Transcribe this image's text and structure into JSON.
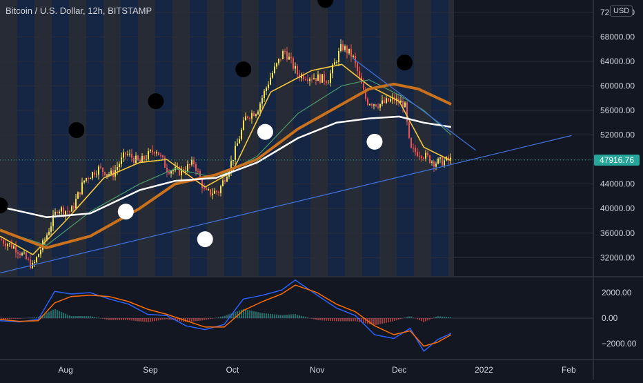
{
  "chart_title": "Bitcoin / U.S. Dollar, 12h, BITSTAMP",
  "currency_badge": "USD",
  "colors": {
    "background": "#131722",
    "band_dark": "#2a2e39",
    "band_blue": "#152847",
    "grid": "#2a2e39",
    "axis_text": "#d1d4dc",
    "candle_up": "#f5e14b",
    "candle_down": "#ef5350",
    "ema_fast": "#f7c93a",
    "ma_mid": "#4d9a6a",
    "ma_slow": "#c9711d",
    "ma_long": "#ffffff",
    "trendline": "#3f6fd6",
    "macd_line": "#2962ff",
    "signal_line": "#ff6d00",
    "last_price": "#26a69a"
  },
  "chart_data": [
    {
      "type": "line",
      "pane": "price",
      "title": "Bitcoin / U.S. Dollar, 12h, BITSTAMP",
      "x_ticks": [
        "Aug",
        "Sep",
        "Oct",
        "Nov",
        "Dec",
        "2022",
        "Feb"
      ],
      "y_ticks": [
        32000,
        36000,
        40000,
        44000,
        48000,
        52000,
        56000,
        60000,
        64000,
        68000,
        72000
      ],
      "y_tick_labels": [
        "32000.00",
        "36000.00",
        "40000.00",
        "44000.00",
        "48000.00",
        "52000.00",
        "56000.00",
        "60000.00",
        "64000.00",
        "68000.00",
        "72000.00"
      ],
      "ylim": [
        29000,
        74000
      ],
      "last_price": 47916.76,
      "last_price_label": "47916.76",
      "close_series": {
        "name": "",
        "dates": [
          "2021-07-08",
          "2021-07-14",
          "2021-07-20",
          "2021-07-24",
          "2021-07-29",
          "2021-08-03",
          "2021-08-08",
          "2021-08-13",
          "2021-08-18",
          "2021-08-23",
          "2021-08-28",
          "2021-09-03",
          "2021-09-07",
          "2021-09-12",
          "2021-09-17",
          "2021-09-21",
          "2021-09-26",
          "2021-10-01",
          "2021-10-06",
          "2021-10-10",
          "2021-10-15",
          "2021-10-20",
          "2021-10-25",
          "2021-10-30",
          "2021-11-05",
          "2021-11-10",
          "2021-11-14",
          "2021-11-19",
          "2021-11-24",
          "2021-11-29",
          "2021-12-03",
          "2021-12-05",
          "2021-12-09",
          "2021-12-14",
          "2021-12-20"
        ],
        "values": [
          35000,
          33500,
          30500,
          34500,
          40000,
          39500,
          44800,
          46500,
          45500,
          49000,
          47500,
          49800,
          46500,
          46000,
          47500,
          42500,
          42800,
          48000,
          55000,
          56000,
          61500,
          65800,
          61800,
          61500,
          61000,
          66500,
          64800,
          57500,
          57000,
          57800,
          57000,
          49500,
          49000,
          47500,
          47900
        ]
      },
      "moving_averages": [
        {
          "name": "",
          "dates": [
            "2021-07-08",
            "2021-07-20",
            "2021-08-01",
            "2021-08-15",
            "2021-08-28",
            "2021-09-07",
            "2021-09-21",
            "2021-10-01",
            "2021-10-15",
            "2021-10-30",
            "2021-11-10",
            "2021-11-20",
            "2021-12-01",
            "2021-12-10",
            "2021-12-20"
          ],
          "values": [
            35500,
            32500,
            38000,
            45000,
            47500,
            48000,
            43500,
            46000,
            59000,
            62500,
            63500,
            60000,
            57500,
            50000,
            47800
          ]
        },
        {
          "name": "",
          "dates": [
            "2021-07-08",
            "2021-07-25",
            "2021-08-10",
            "2021-08-28",
            "2021-09-10",
            "2021-09-25",
            "2021-10-10",
            "2021-10-25",
            "2021-11-10",
            "2021-11-20",
            "2021-12-01",
            "2021-12-10",
            "2021-12-20"
          ],
          "values": [
            36500,
            34000,
            39500,
            44000,
            46500,
            45000,
            48500,
            55500,
            60000,
            61000,
            58500,
            56000,
            52000
          ]
        },
        {
          "name": "",
          "dates": [
            "2021-07-08",
            "2021-07-25",
            "2021-08-10",
            "2021-08-28",
            "2021-09-10",
            "2021-09-25",
            "2021-10-10",
            "2021-10-25",
            "2021-11-08",
            "2021-11-20",
            "2021-11-29",
            "2021-12-08",
            "2021-12-20"
          ],
          "values": [
            36500,
            33600,
            35500,
            40000,
            44000,
            45500,
            48000,
            53000,
            56500,
            59500,
            60300,
            59500,
            57000
          ]
        },
        {
          "name": "",
          "dates": [
            "2021-07-08",
            "2021-07-25",
            "2021-08-10",
            "2021-08-28",
            "2021-09-10",
            "2021-09-25",
            "2021-10-10",
            "2021-10-25",
            "2021-11-08",
            "2021-11-20",
            "2021-12-01",
            "2021-12-10",
            "2021-12-20"
          ],
          "values": [
            40300,
            38600,
            39200,
            43000,
            44500,
            45000,
            47500,
            51500,
            54000,
            54700,
            55000,
            54000,
            53300
          ]
        }
      ],
      "trendlines": [
        {
          "from": {
            "date": "2021-07-08",
            "value": 29500
          },
          "to": {
            "date": "2022-02-02",
            "value": 51900
          }
        },
        {
          "from": {
            "date": "2021-11-14",
            "value": 64500
          },
          "to": {
            "date": "2021-12-29",
            "value": 49500
          }
        }
      ],
      "markers": [
        {
          "date": "2021-07-08",
          "value": 40500,
          "color": "black"
        },
        {
          "date": "2021-08-05",
          "value": 52800,
          "color": "black"
        },
        {
          "date": "2021-08-23",
          "value": 39500,
          "color": "white"
        },
        {
          "date": "2021-09-03",
          "value": 57500,
          "color": "black"
        },
        {
          "date": "2021-09-21",
          "value": 35000,
          "color": "white"
        },
        {
          "date": "2021-10-05",
          "value": 62700,
          "color": "black"
        },
        {
          "date": "2021-10-13",
          "value": 52500,
          "color": "white"
        },
        {
          "date": "2021-11-04",
          "value": 74000,
          "color": "black"
        },
        {
          "date": "2021-11-22",
          "value": 50900,
          "color": "white"
        },
        {
          "date": "2021-12-03",
          "value": 63800,
          "color": "black"
        }
      ]
    },
    {
      "type": "line",
      "pane": "oscillator",
      "y_ticks": [
        -2000,
        0,
        2000
      ],
      "y_tick_labels": [
        "−2000.00",
        "0.00",
        "2000.00"
      ],
      "ylim": [
        -3200,
        3200
      ],
      "series": [
        {
          "name": "",
          "dates": [
            "2021-07-08",
            "2021-07-15",
            "2021-07-22",
            "2021-07-28",
            "2021-08-03",
            "2021-08-10",
            "2021-08-17",
            "2021-08-24",
            "2021-08-31",
            "2021-09-07",
            "2021-09-14",
            "2021-09-21",
            "2021-09-28",
            "2021-10-05",
            "2021-10-12",
            "2021-10-19",
            "2021-10-24",
            "2021-11-01",
            "2021-11-08",
            "2021-11-15",
            "2021-11-22",
            "2021-11-29",
            "2021-12-05",
            "2021-12-10",
            "2021-12-15",
            "2021-12-20"
          ],
          "values": [
            -200,
            -300,
            -100,
            2100,
            1900,
            2000,
            1500,
            1100,
            300,
            200,
            -600,
            -900,
            -500,
            1500,
            1800,
            2200,
            3000,
            1800,
            800,
            200,
            -1300,
            -1600,
            -800,
            -2600,
            -1700,
            -1200
          ]
        },
        {
          "name": "",
          "dates": [
            "2021-07-08",
            "2021-07-15",
            "2021-07-22",
            "2021-07-28",
            "2021-08-03",
            "2021-08-10",
            "2021-08-17",
            "2021-08-24",
            "2021-08-31",
            "2021-09-07",
            "2021-09-14",
            "2021-09-21",
            "2021-09-28",
            "2021-10-05",
            "2021-10-12",
            "2021-10-19",
            "2021-10-24",
            "2021-11-01",
            "2021-11-08",
            "2021-11-15",
            "2021-11-22",
            "2021-11-29",
            "2021-12-05",
            "2021-12-10",
            "2021-12-15",
            "2021-12-20"
          ],
          "values": [
            -100,
            -250,
            -200,
            1200,
            1700,
            1800,
            1700,
            1300,
            700,
            300,
            -200,
            -700,
            -700,
            600,
            1300,
            1900,
            2600,
            2000,
            1100,
            500,
            -600,
            -1300,
            -1000,
            -2200,
            -1900,
            -1300
          ]
        }
      ]
    }
  ]
}
